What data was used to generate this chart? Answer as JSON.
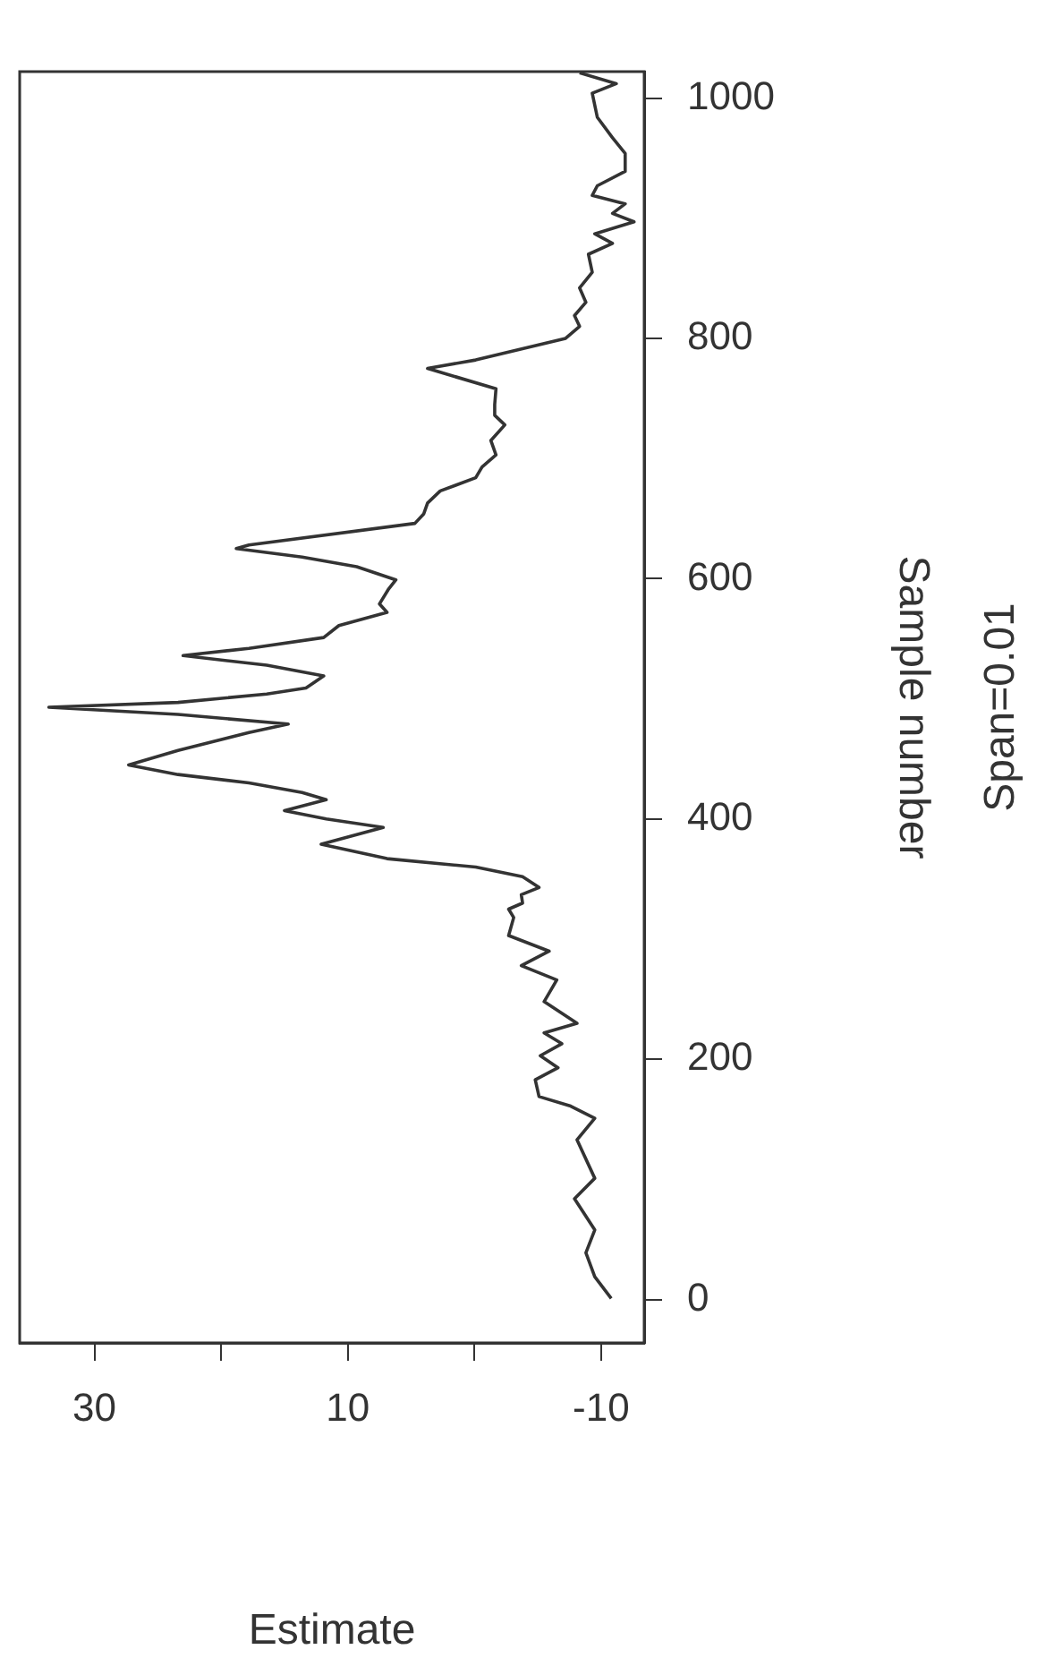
{
  "chart_data": {
    "type": "line",
    "xlabel": "Estimate",
    "ylabel": "Sample number",
    "annotations": [
      "Span=0.01"
    ],
    "xlim": [
      35.9,
      -13.4
    ],
    "ylim": [
      -36,
      1022
    ],
    "xticks": [
      -10,
      {
        "value": 0,
        "label": null
      },
      10,
      {
        "value": 20,
        "label": null
      },
      30
    ],
    "yticks": [
      0,
      200,
      400,
      600,
      800,
      1000
    ],
    "grid": false,
    "legend": false,
    "marker": "none",
    "line_style": "solid",
    "series": [
      {
        "color": "#333333",
        "x": [
          -10.8,
          -9.5,
          -8.8,
          -9.5,
          -7.9,
          -9.5,
          -8.1,
          -9.5,
          -7.6,
          -5.1,
          -4.8,
          -6.6,
          -5.2,
          -6.9,
          -5.5,
          -8.1,
          -5.5,
          -6.5,
          -3.7,
          -5.9,
          -2.7,
          -3.1,
          -2.7,
          -3.8,
          -3.7,
          -5.1,
          -3.8,
          -0.1,
          6.9,
          12.1,
          7.2,
          11.7,
          15.0,
          11.7,
          13.6,
          17.8,
          23.4,
          27.3,
          23.4,
          17.8,
          14.7,
          23.4,
          33.6,
          23.4,
          16.4,
          13.3,
          11.9,
          16.4,
          23.0,
          17.8,
          11.9,
          10.7,
          6.9,
          7.5,
          6.8,
          6.2,
          9.3,
          13.6,
          18.8,
          17.8,
          4.7,
          4.0,
          3.7,
          2.7,
          -0.1,
          -0.6,
          -1.7,
          -1.3,
          -2.4,
          -1.6,
          -1.6,
          -1.7,
          3.7,
          -0.1,
          -7.2,
          -8.3,
          -7.9,
          -8.8,
          -8.3,
          -9.3,
          -9.0,
          -10.9,
          -9.5,
          -12.6,
          -10.9,
          -11.9,
          -9.3,
          -9.7,
          -11.9,
          -11.9,
          -10.9,
          -9.7,
          -9.3,
          -11.2,
          -8.3
        ],
        "values": [
          1,
          19,
          39,
          58,
          84,
          101,
          133,
          151,
          161,
          169,
          183,
          193,
          203,
          213,
          222,
          230,
          248,
          266,
          278,
          290,
          303,
          318,
          325,
          330,
          337,
          343,
          352,
          360,
          367,
          379,
          393,
          400,
          407,
          416,
          422,
          430,
          437,
          445,
          457,
          472,
          479,
          487,
          493,
          497,
          504,
          509,
          519,
          528,
          536,
          542,
          551,
          561,
          572,
          579,
          591,
          599,
          610,
          618,
          625,
          628,
          646,
          654,
          663,
          673,
          684,
          693,
          703,
          715,
          728,
          736,
          745,
          758,
          775,
          782,
          800,
          810,
          819,
          830,
          842,
          855,
          870,
          879,
          887,
          897,
          904,
          912,
          919,
          927,
          939,
          954,
          967,
          984,
          1004,
          1012,
          1021
        ]
      }
    ]
  }
}
